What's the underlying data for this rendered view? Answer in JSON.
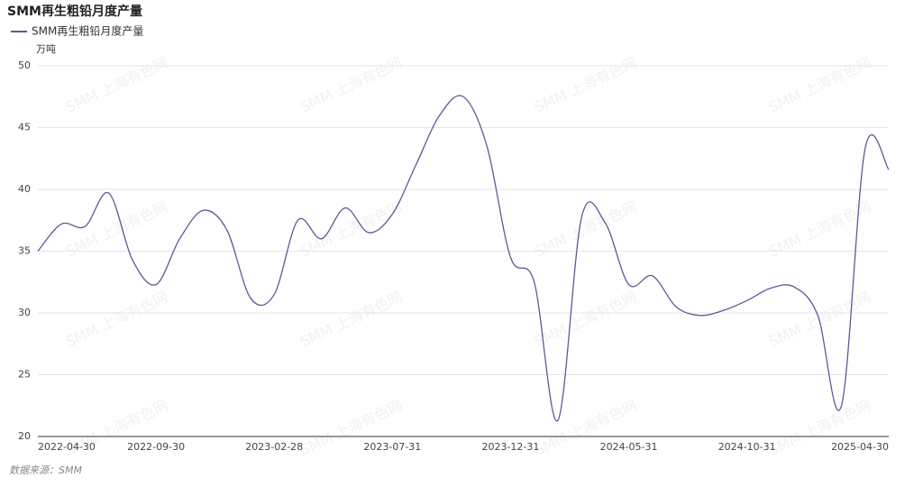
{
  "chart_data": {
    "type": "line",
    "title": "SMM再生粗铅月度产量",
    "y_label": "万吨",
    "source": "数据来源：SMM",
    "watermark": "SMM 上海有色网",
    "categories": [
      "2022-04-30",
      null,
      null,
      null,
      null,
      "2022-09-30",
      null,
      null,
      null,
      null,
      "2023-02-28",
      null,
      null,
      null,
      null,
      "2023-07-31",
      null,
      null,
      null,
      null,
      "2023-12-31",
      null,
      null,
      null,
      null,
      "2024-05-31",
      null,
      null,
      null,
      null,
      "2024-10-31",
      null,
      null,
      null,
      null,
      null,
      "2025-04-30"
    ],
    "series": [
      {
        "name": "SMM再生粗铅月度产量",
        "color": "#5b5a96",
        "values": [
          35.0,
          37.2,
          37.0,
          39.7,
          34.3,
          32.3,
          36.0,
          38.3,
          36.7,
          31.2,
          31.5,
          37.5,
          36.0,
          38.5,
          36.5,
          38.0,
          42.0,
          46.0,
          47.5,
          43.5,
          34.5,
          32.5,
          21.3,
          37.7,
          37.3,
          32.3,
          33.0,
          30.5,
          29.8,
          30.2,
          31.0,
          32.0,
          32.1,
          29.8,
          22.5,
          43.3,
          41.6
        ]
      }
    ],
    "ylim": [
      20,
      50
    ],
    "yticks": [
      20,
      25,
      30,
      35,
      40,
      45,
      50
    ],
    "grid": true
  }
}
